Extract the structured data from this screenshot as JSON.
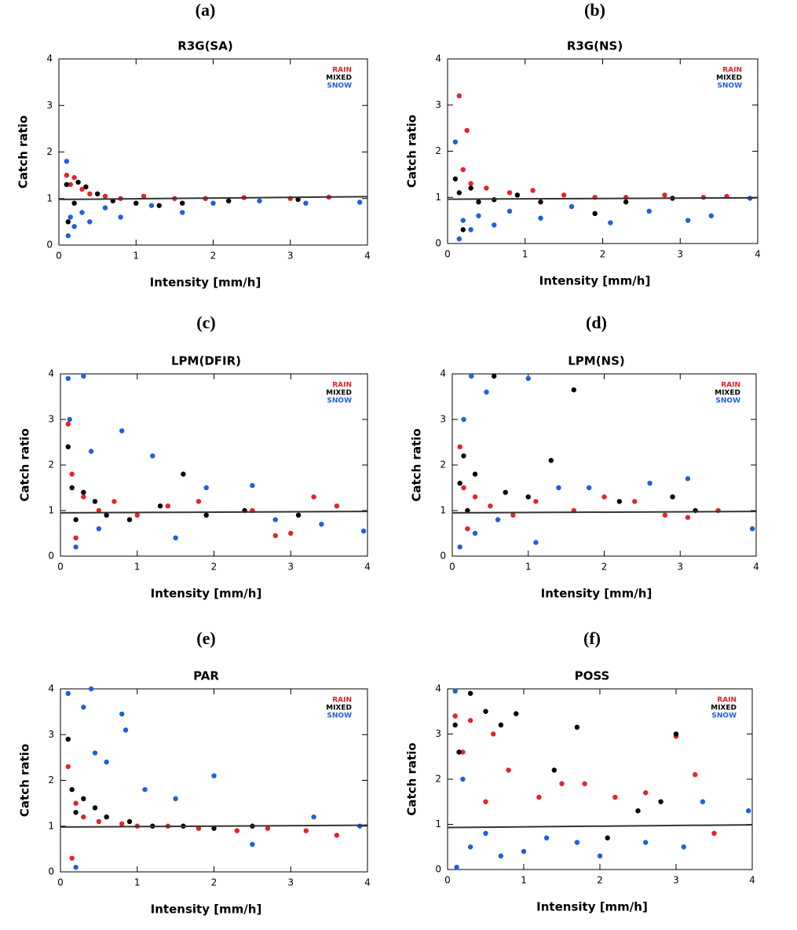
{
  "chart_data": [
    {
      "type": "scatter",
      "panel_label": "(a)",
      "title": "R3G(SA)",
      "xlabel": "Intensity [mm/h]",
      "ylabel": "Catch ratio",
      "xlim": [
        0,
        4
      ],
      "ylim": [
        0,
        4
      ],
      "xticks": [
        0,
        1,
        2,
        3,
        4
      ],
      "yticks": [
        0,
        1,
        2,
        3,
        4
      ],
      "fit_line": {
        "x": [
          0,
          4
        ],
        "y": [
          0.98,
          1.04
        ]
      },
      "series": [
        {
          "name": "RAIN",
          "color": "#e3242b",
          "x": [
            0.1,
            0.15,
            0.2,
            0.3,
            0.4,
            0.6,
            0.8,
            1.1,
            1.5,
            1.9,
            2.4,
            3.0,
            3.5
          ],
          "values": [
            1.5,
            1.3,
            1.45,
            1.2,
            1.1,
            1.05,
            1.0,
            1.05,
            1.0,
            1.0,
            1.02,
            1.0,
            1.03
          ]
        },
        {
          "name": "MIXED",
          "color": "#000000",
          "x": [
            0.1,
            0.12,
            0.2,
            0.25,
            0.35,
            0.5,
            0.7,
            1.0,
            1.3,
            1.6,
            2.2,
            3.1
          ],
          "values": [
            1.3,
            0.5,
            0.9,
            1.35,
            1.25,
            1.1,
            0.95,
            0.9,
            0.85,
            0.9,
            0.95,
            0.98
          ]
        },
        {
          "name": "SNOW",
          "color": "#1f5fe0",
          "x": [
            0.1,
            0.12,
            0.15,
            0.2,
            0.3,
            0.4,
            0.6,
            0.8,
            1.2,
            1.6,
            2.0,
            2.6,
            3.2,
            3.9
          ],
          "values": [
            1.8,
            0.2,
            0.6,
            0.4,
            0.7,
            0.5,
            0.8,
            0.6,
            0.85,
            0.7,
            0.9,
            0.95,
            0.9,
            0.92
          ]
        }
      ]
    },
    {
      "type": "scatter",
      "panel_label": "(b)",
      "title": "R3G(NS)",
      "xlabel": "Intensity [mm/h]",
      "ylabel": "Catch ratio",
      "xlim": [
        0,
        4
      ],
      "ylim": [
        0,
        4
      ],
      "xticks": [
        0,
        1,
        2,
        3,
        4
      ],
      "yticks": [
        0,
        1,
        2,
        3,
        4
      ],
      "fit_line": {
        "x": [
          0,
          4
        ],
        "y": [
          0.96,
          0.99
        ]
      },
      "series": [
        {
          "name": "RAIN",
          "color": "#e3242b",
          "x": [
            0.15,
            0.25,
            0.2,
            0.3,
            0.5,
            0.8,
            1.1,
            1.5,
            1.9,
            2.3,
            2.8,
            3.3,
            3.6
          ],
          "values": [
            3.2,
            2.45,
            1.6,
            1.3,
            1.2,
            1.1,
            1.15,
            1.05,
            1.0,
            1.0,
            1.05,
            1.0,
            1.02
          ]
        },
        {
          "name": "MIXED",
          "color": "#000000",
          "x": [
            0.1,
            0.15,
            0.2,
            0.3,
            0.4,
            0.6,
            0.9,
            1.2,
            1.9,
            2.3,
            2.9
          ],
          "values": [
            1.4,
            1.1,
            0.3,
            1.2,
            0.9,
            0.95,
            1.05,
            0.9,
            0.65,
            0.9,
            0.98
          ]
        },
        {
          "name": "SNOW",
          "color": "#1f5fe0",
          "x": [
            0.1,
            0.15,
            0.2,
            0.3,
            0.4,
            0.6,
            0.8,
            1.2,
            1.6,
            2.1,
            2.6,
            3.1,
            3.4,
            3.9
          ],
          "values": [
            2.2,
            0.1,
            0.5,
            0.3,
            0.6,
            0.4,
            0.7,
            0.55,
            0.8,
            0.45,
            0.7,
            0.5,
            0.6,
            0.98
          ]
        }
      ]
    },
    {
      "type": "scatter",
      "panel_label": "(c)",
      "title": "LPM(DFIR)",
      "xlabel": "Intensity [mm/h]",
      "ylabel": "Catch ratio",
      "xlim": [
        0,
        4
      ],
      "ylim": [
        0,
        4
      ],
      "xticks": [
        0,
        1,
        2,
        3,
        4
      ],
      "yticks": [
        0,
        1,
        2,
        3,
        4
      ],
      "fit_line": {
        "x": [
          0,
          4
        ],
        "y": [
          0.95,
          0.98
        ]
      },
      "series": [
        {
          "name": "RAIN",
          "color": "#e3242b",
          "x": [
            0.1,
            0.15,
            0.2,
            0.3,
            0.5,
            0.7,
            1.0,
            1.4,
            1.8,
            2.5,
            2.8,
            3.3,
            3.6,
            3.0
          ],
          "values": [
            2.9,
            1.8,
            0.4,
            1.3,
            1.0,
            1.2,
            0.9,
            1.1,
            1.2,
            1.0,
            0.45,
            1.3,
            1.1,
            0.5
          ]
        },
        {
          "name": "MIXED",
          "color": "#000000",
          "x": [
            0.1,
            0.15,
            0.2,
            0.3,
            0.45,
            0.6,
            0.9,
            1.3,
            1.6,
            1.9,
            2.4,
            3.1
          ],
          "values": [
            2.4,
            1.5,
            0.8,
            1.4,
            1.2,
            0.9,
            0.8,
            1.1,
            1.8,
            0.9,
            1.0,
            0.9
          ]
        },
        {
          "name": "SNOW",
          "color": "#1f5fe0",
          "x": [
            0.1,
            0.12,
            0.3,
            0.2,
            0.4,
            0.5,
            0.8,
            1.2,
            1.5,
            1.9,
            2.5,
            2.8,
            3.4,
            3.95
          ],
          "values": [
            3.9,
            3.0,
            3.95,
            0.2,
            2.3,
            0.6,
            2.75,
            2.2,
            0.4,
            1.5,
            1.55,
            0.8,
            0.7,
            0.55
          ]
        }
      ]
    },
    {
      "type": "scatter",
      "panel_label": "(d)",
      "title": "LPM(NS)",
      "xlabel": "Intensity [mm/h]",
      "ylabel": "Catch ratio",
      "xlim": [
        0,
        4
      ],
      "ylim": [
        0,
        4
      ],
      "xticks": [
        0,
        1,
        2,
        3,
        4
      ],
      "yticks": [
        0,
        1,
        2,
        3,
        4
      ],
      "fit_line": {
        "x": [
          0,
          4
        ],
        "y": [
          0.95,
          0.98
        ]
      },
      "series": [
        {
          "name": "RAIN",
          "color": "#e3242b",
          "x": [
            0.1,
            0.15,
            0.2,
            0.3,
            0.5,
            0.8,
            1.1,
            1.6,
            2.0,
            2.4,
            2.8,
            3.1,
            3.5
          ],
          "values": [
            2.4,
            1.5,
            0.6,
            1.3,
            1.1,
            0.9,
            1.2,
            1.0,
            1.3,
            1.2,
            0.9,
            0.85,
            1.0
          ]
        },
        {
          "name": "MIXED",
          "color": "#000000",
          "x": [
            0.1,
            0.15,
            0.2,
            0.3,
            0.55,
            0.7,
            1.0,
            1.3,
            1.6,
            2.2,
            2.9,
            3.2
          ],
          "values": [
            1.6,
            2.2,
            1.0,
            1.8,
            3.95,
            1.4,
            1.3,
            2.1,
            3.65,
            1.2,
            1.3,
            1.0
          ]
        },
        {
          "name": "SNOW",
          "color": "#1f5fe0",
          "x": [
            0.1,
            0.15,
            0.25,
            0.3,
            0.45,
            0.6,
            1.0,
            1.1,
            1.4,
            1.8,
            2.6,
            3.1,
            3.95
          ],
          "values": [
            0.2,
            3.0,
            3.95,
            0.5,
            3.6,
            0.8,
            3.9,
            0.3,
            1.5,
            1.5,
            1.6,
            1.7,
            0.6
          ]
        }
      ]
    },
    {
      "type": "scatter",
      "panel_label": "(e)",
      "title": "PAR",
      "xlabel": "Intensity [mm/h]",
      "ylabel": "Catch ratio",
      "xlim": [
        0,
        4
      ],
      "ylim": [
        0,
        4
      ],
      "xticks": [
        0,
        1,
        2,
        3,
        4
      ],
      "yticks": [
        0,
        1,
        2,
        3,
        4
      ],
      "fit_line": {
        "x": [
          0,
          4
        ],
        "y": [
          0.98,
          1.02
        ]
      },
      "series": [
        {
          "name": "RAIN",
          "color": "#e3242b",
          "x": [
            0.1,
            0.15,
            0.2,
            0.3,
            0.5,
            0.8,
            1.0,
            1.4,
            1.8,
            2.3,
            2.7,
            3.2,
            3.6
          ],
          "values": [
            2.3,
            0.3,
            1.5,
            1.2,
            1.1,
            1.05,
            1.0,
            1.0,
            0.95,
            0.9,
            0.95,
            0.9,
            0.8
          ]
        },
        {
          "name": "MIXED",
          "color": "#000000",
          "x": [
            0.1,
            0.15,
            0.2,
            0.3,
            0.45,
            0.6,
            0.9,
            1.2,
            1.6,
            2.0,
            2.5
          ],
          "values": [
            2.9,
            1.8,
            1.3,
            1.6,
            1.4,
            1.2,
            1.1,
            1.0,
            1.0,
            0.95,
            1.0
          ]
        },
        {
          "name": "SNOW",
          "color": "#1f5fe0",
          "x": [
            0.1,
            0.2,
            0.3,
            0.4,
            0.45,
            0.6,
            0.8,
            0.85,
            1.1,
            1.5,
            2.0,
            2.5,
            3.3,
            3.9
          ],
          "values": [
            3.9,
            0.1,
            3.6,
            4.0,
            2.6,
            2.4,
            3.45,
            3.1,
            1.8,
            1.6,
            2.1,
            0.6,
            1.2,
            1.0
          ]
        }
      ]
    },
    {
      "type": "scatter",
      "panel_label": "(f)",
      "title": "POSS",
      "xlabel": "Intensity [mm/h]",
      "ylabel": "Catch ratio",
      "xlim": [
        0,
        4
      ],
      "ylim": [
        0,
        4
      ],
      "xticks": [
        0,
        1,
        2,
        3,
        4
      ],
      "yticks": [
        0,
        1,
        2,
        3,
        4
      ],
      "fit_line": {
        "x": [
          0,
          4
        ],
        "y": [
          0.93,
          0.99
        ]
      },
      "series": [
        {
          "name": "RAIN",
          "color": "#e3242b",
          "x": [
            0.1,
            0.2,
            0.3,
            0.5,
            0.6,
            0.8,
            1.2,
            1.5,
            1.8,
            2.2,
            2.6,
            3.0,
            3.25,
            3.5
          ],
          "values": [
            3.4,
            2.6,
            3.3,
            1.5,
            3.0,
            2.2,
            1.6,
            1.9,
            1.9,
            1.6,
            1.7,
            2.95,
            2.1,
            0.8
          ]
        },
        {
          "name": "MIXED",
          "color": "#000000",
          "x": [
            0.1,
            0.15,
            0.3,
            0.5,
            0.7,
            0.9,
            1.4,
            1.7,
            2.1,
            2.5,
            2.8,
            3.0
          ],
          "values": [
            3.2,
            2.6,
            3.9,
            3.5,
            3.2,
            3.45,
            2.2,
            3.15,
            0.7,
            1.3,
            1.5,
            3.0
          ]
        },
        {
          "name": "SNOW",
          "color": "#1f5fe0",
          "x": [
            0.1,
            0.12,
            0.2,
            0.3,
            0.5,
            0.7,
            1.0,
            1.3,
            1.7,
            2.0,
            2.6,
            3.1,
            3.35,
            3.95
          ],
          "values": [
            3.95,
            0.05,
            2.0,
            0.5,
            0.8,
            0.3,
            0.4,
            0.7,
            0.6,
            0.3,
            0.6,
            0.5,
            1.5,
            1.3
          ]
        }
      ]
    }
  ]
}
